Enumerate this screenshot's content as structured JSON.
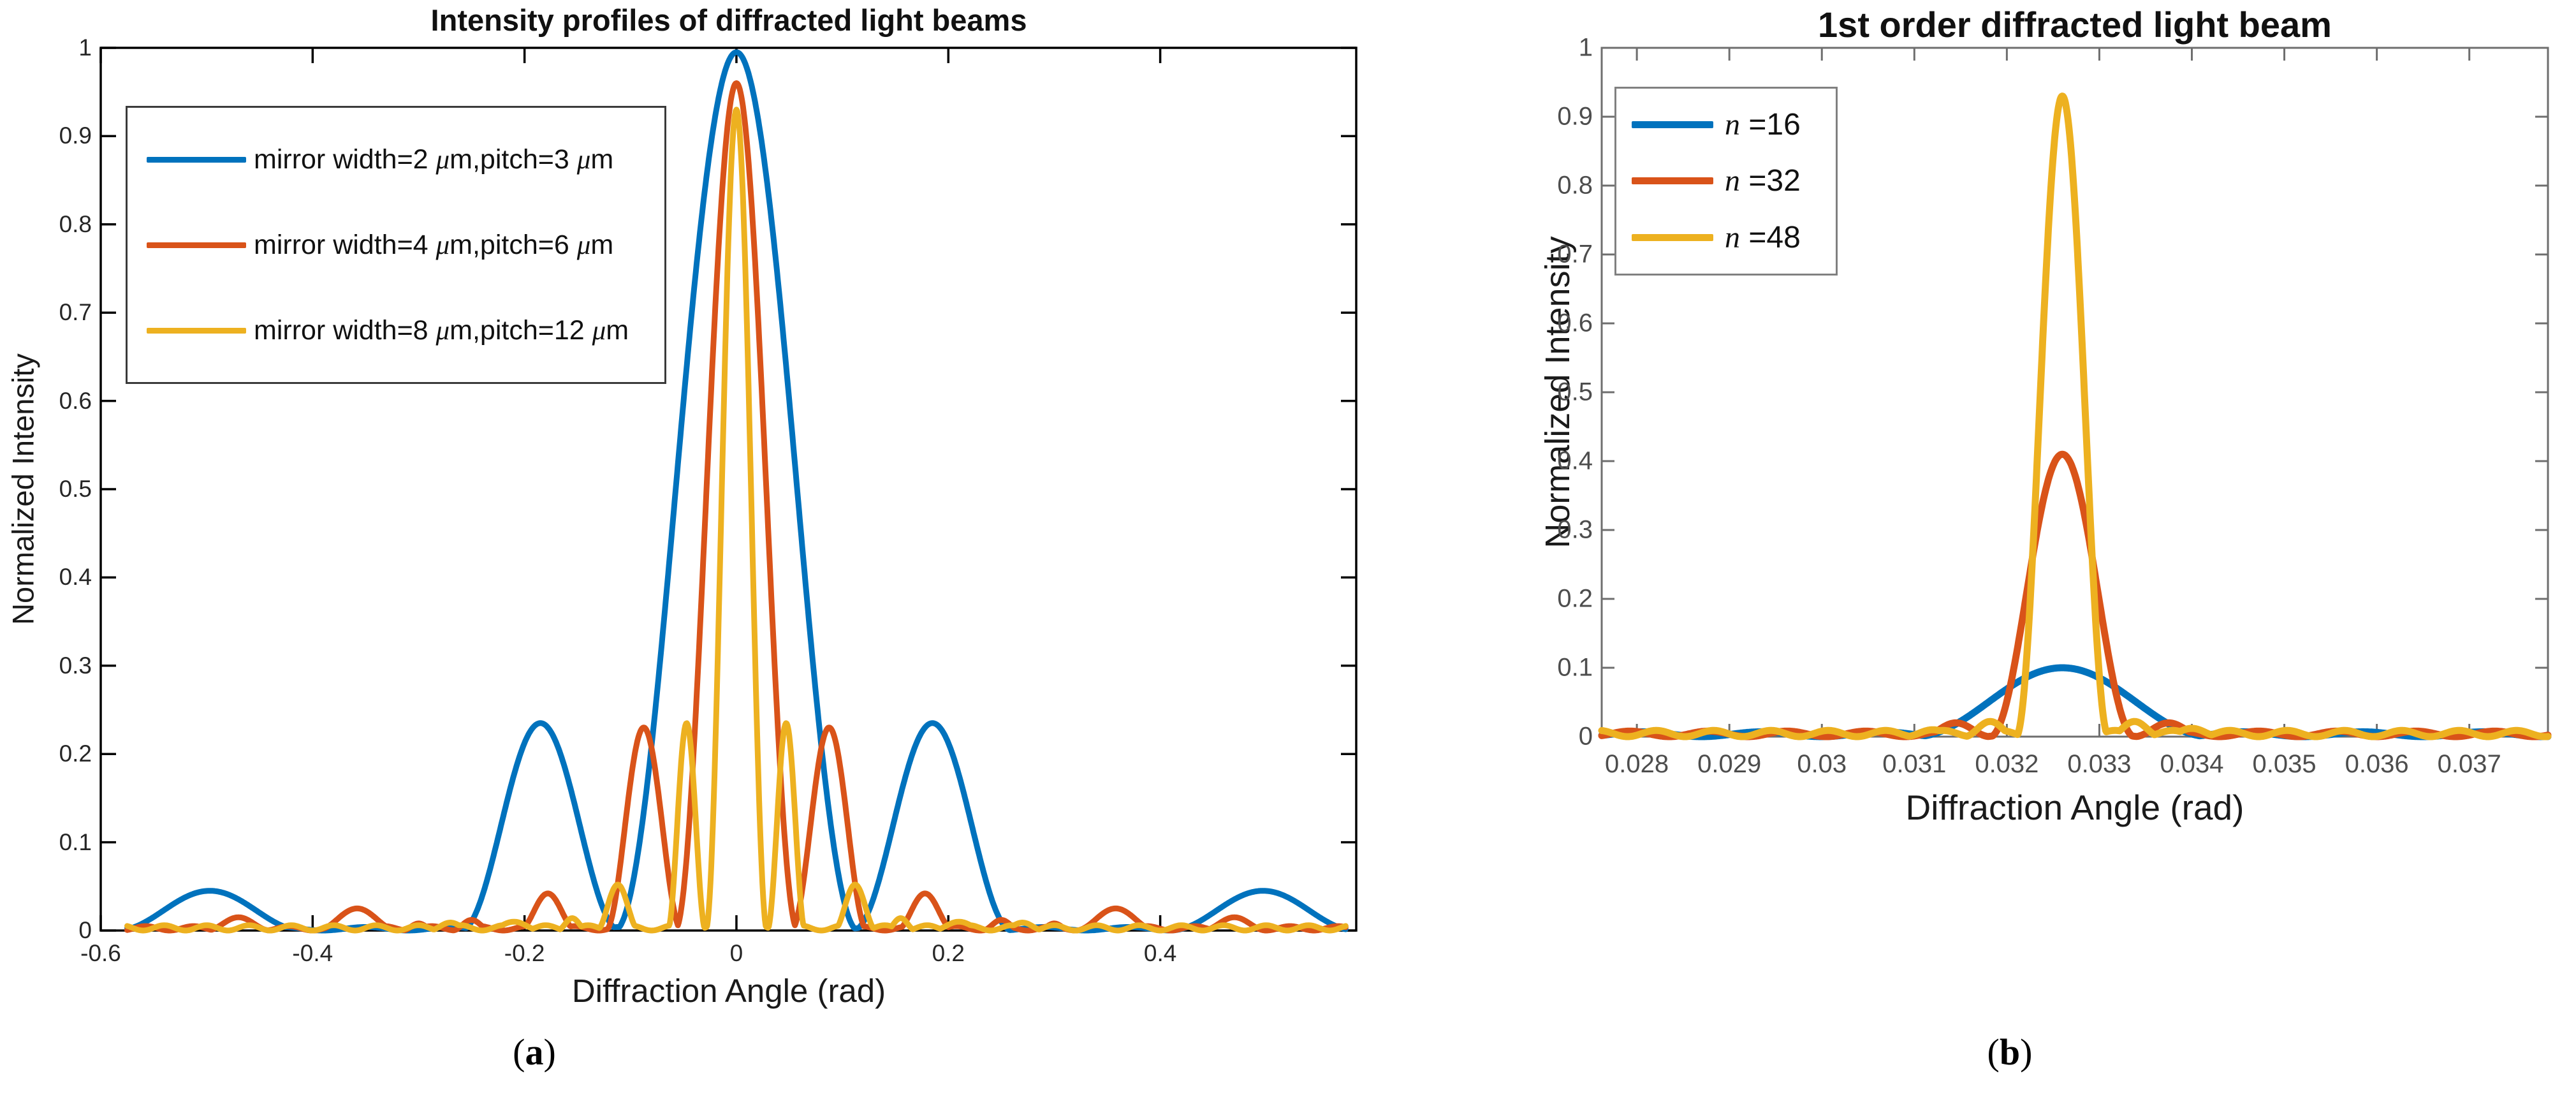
{
  "page": {
    "background": "#ffffff"
  },
  "captions": {
    "a": {
      "pre": "(",
      "letter": "a",
      "post": ")"
    },
    "b": {
      "pre": "(",
      "letter": "b",
      "post": ")"
    }
  },
  "colors": {
    "blue": "#0072BD",
    "orange": "#D95319",
    "yellow": "#EDB120"
  },
  "chart_data": [
    {
      "id": "a",
      "type": "line",
      "title": "Intensity profiles of diffracted light beams",
      "xlabel": "Diffraction Angle (rad)",
      "ylabel": "Normalized Intensity",
      "x_range": [
        -0.6,
        0.585
      ],
      "y_range": [
        0,
        1
      ],
      "data_x_range": [
        -0.575,
        0.575
      ],
      "grid": false,
      "legend_position": "top-left",
      "x_ticks": [
        {
          "v": -0.6,
          "label": "-0.6"
        },
        {
          "v": -0.4,
          "label": "-0.4"
        },
        {
          "v": -0.2,
          "label": "-0.2"
        },
        {
          "v": 0,
          "label": "0"
        },
        {
          "v": 0.2,
          "label": "0.2"
        },
        {
          "v": 0.4,
          "label": "0.4"
        }
      ],
      "y_ticks": [
        {
          "v": 0,
          "label": "0"
        },
        {
          "v": 0.1,
          "label": "0.1"
        },
        {
          "v": 0.2,
          "label": "0.2"
        },
        {
          "v": 0.3,
          "label": "0.3"
        },
        {
          "v": 0.4,
          "label": "0.4"
        },
        {
          "v": 0.5,
          "label": "0.5"
        },
        {
          "v": 0.6,
          "label": "0.6"
        },
        {
          "v": 0.7,
          "label": "0.7"
        },
        {
          "v": 0.8,
          "label": "0.8"
        },
        {
          "v": 0.9,
          "label": "0.9"
        },
        {
          "v": 1,
          "label": "1"
        }
      ],
      "series": [
        {
          "name": "mirror width=2μm,pitch=3μm",
          "label_parts": [
            [
              "t",
              "mirror width=2 "
            ],
            [
              "i",
              "μ"
            ],
            [
              "t",
              "m,pitch=3 "
            ],
            [
              "i",
              "μ"
            ],
            [
              "t",
              "m"
            ]
          ],
          "color": "#0072BD",
          "peak": {
            "x": 0,
            "intensity": 0.995
          },
          "side_lobes": [
            {
              "x": 0.185,
              "intensity": 0.235
            },
            {
              "x": 0.497,
              "intensity": 0.045
            }
          ],
          "lobes": [
            [
              0,
              0.115,
              0.995
            ],
            [
              -0.185,
              0.075,
              0.235
            ],
            [
              0.185,
              0.075,
              0.235
            ],
            [
              -0.497,
              0.088,
              0.045
            ],
            [
              0.497,
              0.088,
              0.045
            ]
          ],
          "ripple": {
            "amp": 0.004,
            "period": 0.08,
            "phase": 0.01
          }
        },
        {
          "name": "mirror width=4μm,pitch=6μm",
          "label_parts": [
            [
              "t",
              "mirror width=4 "
            ],
            [
              "i",
              "μ"
            ],
            [
              "t",
              "m,pitch=6 "
            ],
            [
              "i",
              "μ"
            ],
            [
              "t",
              "m"
            ]
          ],
          "color": "#D95319",
          "peak": {
            "x": 0,
            "intensity": 0.96
          },
          "side_lobes": [
            {
              "x": 0.0875,
              "intensity": 0.23
            },
            {
              "x": 0.178,
              "intensity": 0.042
            },
            {
              "x": 0.358,
              "intensity": 0.025
            }
          ],
          "lobes": [
            [
              0,
              0.058,
              0.96
            ],
            [
              -0.0875,
              0.036,
              0.23
            ],
            [
              0.0875,
              0.036,
              0.23
            ],
            [
              -0.178,
              0.027,
              0.042
            ],
            [
              0.178,
              0.027,
              0.042
            ],
            [
              -0.25,
              0.018,
              0.012
            ],
            [
              0.25,
              0.018,
              0.012
            ],
            [
              -0.3,
              0.015,
              0.008
            ],
            [
              0.3,
              0.015,
              0.008
            ],
            [
              -0.358,
              0.038,
              0.025
            ],
            [
              0.358,
              0.038,
              0.025
            ],
            [
              -0.47,
              0.03,
              0.015
            ],
            [
              0.47,
              0.03,
              0.015
            ]
          ],
          "ripple": {
            "amp": 0.005,
            "period": 0.045,
            "phase": 0.005
          }
        },
        {
          "name": "mirror width=8μm,pitch=12μm",
          "label_parts": [
            [
              "t",
              "mirror width=8 "
            ],
            [
              "i",
              "μ"
            ],
            [
              "t",
              "m,pitch=12 "
            ],
            [
              "i",
              "μ"
            ],
            [
              "t",
              "m"
            ]
          ],
          "color": "#EDB120",
          "peak": {
            "x": 0,
            "intensity": 0.93
          },
          "side_lobes": [
            {
              "x": 0.047,
              "intensity": 0.235
            },
            {
              "x": 0.112,
              "intensity": 0.052
            }
          ],
          "lobes": [
            [
              0,
              0.029,
              0.93
            ],
            [
              -0.047,
              0.018,
              0.235
            ],
            [
              0.047,
              0.018,
              0.235
            ],
            [
              -0.112,
              0.02,
              0.052
            ],
            [
              0.112,
              0.02,
              0.052
            ],
            [
              -0.155,
              0.014,
              0.014
            ],
            [
              0.155,
              0.014,
              0.014
            ],
            [
              -0.21,
              0.025,
              0.01
            ],
            [
              0.21,
              0.025,
              0.01
            ],
            [
              -0.27,
              0.02,
              0.009
            ],
            [
              0.27,
              0.02,
              0.009
            ]
          ],
          "ripple": {
            "amp": 0.006,
            "period": 0.04,
            "phase": 0
          }
        }
      ]
    },
    {
      "id": "b",
      "type": "line",
      "title": "1st order diffracted light beam",
      "xlabel": "Diffraction Angle (rad)",
      "ylabel": "Normalized Intensity",
      "x_range": [
        0.02762,
        0.03785
      ],
      "y_range": [
        0,
        1
      ],
      "data_x_range": [
        0.02762,
        0.03785
      ],
      "grid": false,
      "legend_position": "top-left",
      "x_ticks": [
        {
          "v": 0.028,
          "label": "0.028"
        },
        {
          "v": 0.029,
          "label": "0.029"
        },
        {
          "v": 0.03,
          "label": "0.03"
        },
        {
          "v": 0.031,
          "label": "0.031"
        },
        {
          "v": 0.032,
          "label": "0.032"
        },
        {
          "v": 0.033,
          "label": "0.033"
        },
        {
          "v": 0.034,
          "label": "0.034"
        },
        {
          "v": 0.035,
          "label": "0.035"
        },
        {
          "v": 0.036,
          "label": "0.036"
        },
        {
          "v": 0.037,
          "label": "0.037"
        }
      ],
      "y_ticks": [
        {
          "v": 0,
          "label": "0"
        },
        {
          "v": 0.1,
          "label": "0.1"
        },
        {
          "v": 0.2,
          "label": "0.2"
        },
        {
          "v": 0.3,
          "label": "0.3"
        },
        {
          "v": 0.4,
          "label": "0.4"
        },
        {
          "v": 0.5,
          "label": "0.5"
        },
        {
          "v": 0.6,
          "label": "0.6"
        },
        {
          "v": 0.7,
          "label": "0.7"
        },
        {
          "v": 0.8,
          "label": "0.8"
        },
        {
          "v": 0.9,
          "label": "0.9"
        },
        {
          "v": 1,
          "label": "1"
        }
      ],
      "series": [
        {
          "name": "n=16",
          "label_parts": [
            [
              "i",
              "n"
            ],
            [
              "t",
              " =16"
            ]
          ],
          "color": "#0072BD",
          "peak": {
            "x": 0.0326,
            "intensity": 0.1
          },
          "lobes": [
            [
              0.0326,
              0.0016,
              0.1
            ]
          ],
          "ripple": {
            "amp": 0.007,
            "period": 0.0013,
            "phase": 0.0001
          }
        },
        {
          "name": "n=32",
          "label_parts": [
            [
              "i",
              "n"
            ],
            [
              "t",
              " =32"
            ]
          ],
          "color": "#D95319",
          "peak": {
            "x": 0.0326,
            "intensity": 0.41
          },
          "side_lobes": [
            {
              "x": 0.03145,
              "intensity": 0.02
            },
            {
              "x": 0.03375,
              "intensity": 0.02
            }
          ],
          "lobes": [
            [
              0.0326,
              0.00078,
              0.41
            ],
            [
              0.03145,
              0.00037,
              0.02
            ],
            [
              0.03375,
              0.00037,
              0.02
            ]
          ],
          "ripple": {
            "amp": 0.008,
            "period": 0.00085,
            "phase": 0.0003
          }
        },
        {
          "name": "n=48",
          "label_parts": [
            [
              "i",
              "n"
            ],
            [
              "t",
              " =48"
            ]
          ],
          "color": "#EDB120",
          "peak": {
            "x": 0.0326,
            "intensity": 0.93
          },
          "side_lobes": [
            {
              "x": 0.03182,
              "intensity": 0.022
            },
            {
              "x": 0.03338,
              "intensity": 0.022
            }
          ],
          "lobes": [
            [
              0.0326,
              0.0005,
              0.93
            ],
            [
              0.03182,
              0.00028,
              0.022
            ],
            [
              0.03338,
              0.00028,
              0.022
            ],
            [
              0.0312,
              0.0003,
              0.01
            ],
            [
              0.034,
              0.0003,
              0.012
            ]
          ],
          "ripple": {
            "amp": 0.009,
            "period": 0.00062,
            "phase": 0
          }
        }
      ]
    }
  ]
}
